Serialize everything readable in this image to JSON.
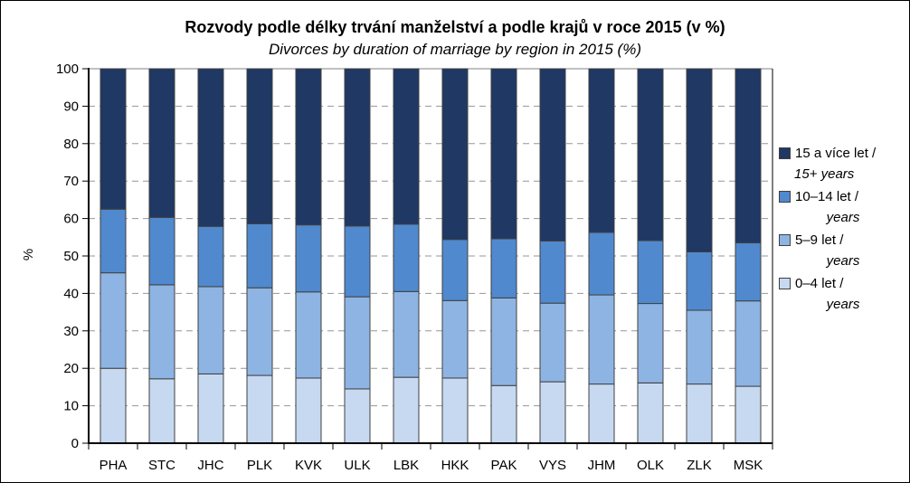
{
  "page": {
    "background": "#FFFFFF",
    "border_color": "#000000"
  },
  "chart_data": {
    "type": "bar",
    "stacked": true,
    "title": "Rozvody podle délky trvání manželství a podle krajů v roce 2015 (v %)",
    "subtitle": "Divorces by duration of marriage by region in 2015 (%)",
    "ylabel": "%",
    "ylim": [
      0,
      100
    ],
    "ytick_step": 10,
    "yticks": [
      0,
      10,
      20,
      30,
      40,
      50,
      60,
      70,
      80,
      90,
      100
    ],
    "grid": "horizontal-dashed",
    "legend_position": "right",
    "axis_color": "#000000",
    "gridline_color": "#969696",
    "top_gridline_color": "#808080",
    "plot_right_border_color": "#000000",
    "bar_border_color": "#404040",
    "tick_label_color": "#000000",
    "categories": [
      "PHA",
      "STC",
      "JHC",
      "PLK",
      "KVK",
      "ULK",
      "LBK",
      "HKK",
      "PAK",
      "VYS",
      "JHM",
      "OLK",
      "ZLK",
      "MSK"
    ],
    "series": [
      {
        "name": "0–4 let / years",
        "legend_line1": "0–4 let /",
        "legend_line2": "years",
        "color": "#C6D9F1",
        "values": [
          20.0,
          17.2,
          18.5,
          18.1,
          17.4,
          14.5,
          17.6,
          17.4,
          15.4,
          16.4,
          15.8,
          16.1,
          15.8,
          15.2
        ]
      },
      {
        "name": "5–9 let / years",
        "legend_line1": "5–9 let /",
        "legend_line2": "years",
        "color": "#8EB4E3",
        "values": [
          25.5,
          25.1,
          23.3,
          23.4,
          23.0,
          24.6,
          22.9,
          20.7,
          23.4,
          21.0,
          23.8,
          21.2,
          19.7,
          22.8
        ]
      },
      {
        "name": "10–14 let / years",
        "legend_line1": "10–14 let /",
        "legend_line2": "years",
        "color": "#5089CE",
        "values": [
          17.0,
          18.0,
          16.1,
          17.1,
          17.9,
          18.9,
          18.0,
          16.3,
          15.8,
          16.6,
          16.7,
          16.8,
          15.6,
          15.5
        ]
      },
      {
        "name": "15 a více let / 15+ years",
        "legend_line1": "15 a více let /",
        "legend_line2": "15+ years",
        "color": "#1F3864",
        "values": [
          37.5,
          39.7,
          42.1,
          41.4,
          41.7,
          42.0,
          41.5,
          45.6,
          45.4,
          46.0,
          43.7,
          45.9,
          48.9,
          46.5
        ]
      }
    ]
  }
}
